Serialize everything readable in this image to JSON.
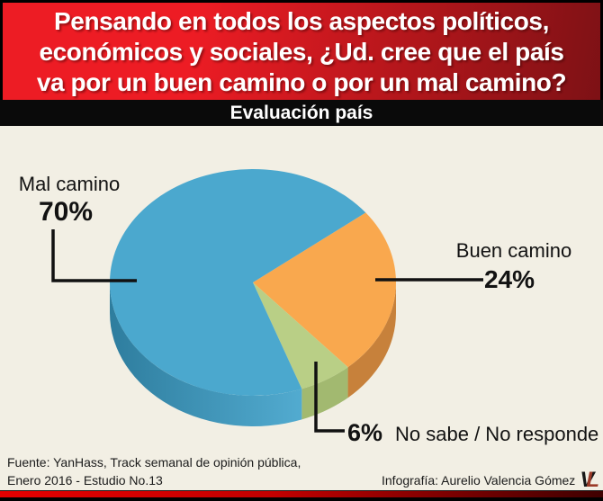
{
  "header": {
    "question_lines": [
      "Pensando en todos los aspectos políticos,",
      "económicos y sociales, ¿Ud. cree que el país",
      "va por un buen camino o por un mal camino?"
    ]
  },
  "section_bar": {
    "title": "Evaluación país"
  },
  "chart_data": {
    "type": "pie",
    "style": "3d",
    "title": "Evaluación país",
    "unit": "%",
    "start_angle_deg": 38,
    "clockwise": true,
    "slices": [
      {
        "label": "Mal camino",
        "value": 70,
        "pct_label": "70%",
        "color": "#4BA8CE",
        "side_gradient": [
          "#2E7D9E",
          "#52ABD0"
        ]
      },
      {
        "label": "Buen camino",
        "value": 24,
        "pct_label": "24%",
        "color": "#F9A84E",
        "side_color": "#C7813B"
      },
      {
        "label": "No sabe / No responde",
        "value": 6,
        "pct_label": "6%",
        "color": "#B9CF86",
        "side_color": "#A2B970"
      }
    ],
    "background": "#F2EFE4",
    "leader_line_color": "#111111"
  },
  "footer": {
    "source_line1": "Fuente: YanHass, Track semanal de opinión pública,",
    "source_line2": "Enero 2016 - Estudio No.13",
    "credit": "Infografía: Aurelio Valencia Gómez",
    "logo_v": "V",
    "logo_l": "L"
  }
}
